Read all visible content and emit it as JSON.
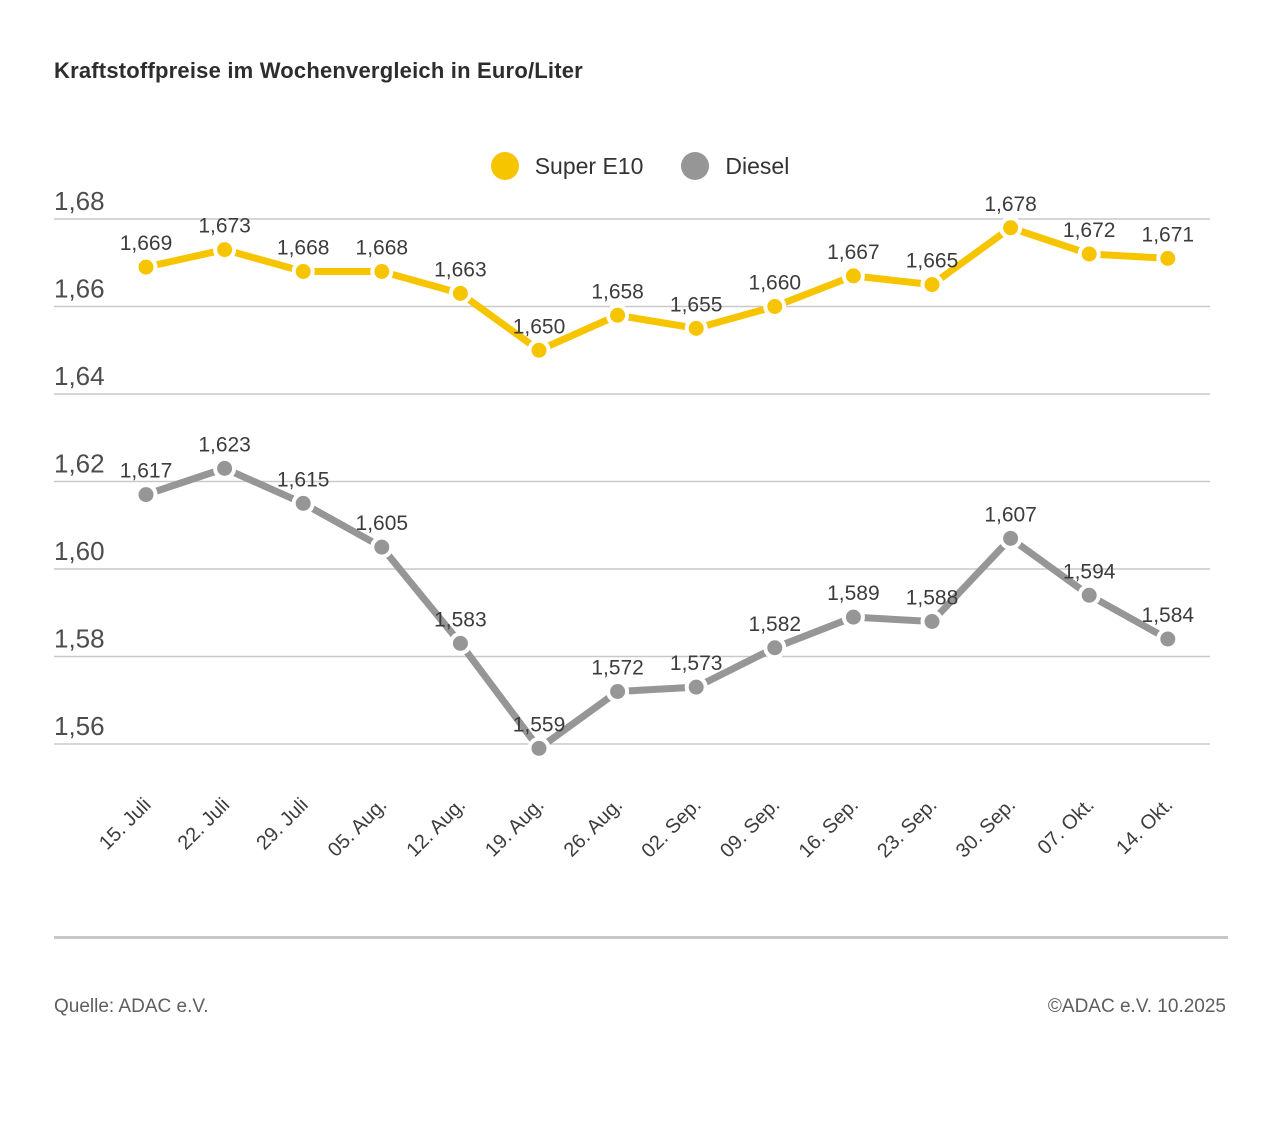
{
  "title": "Kraftstoffpreise im Wochenvergleich in Euro/Liter",
  "footer": {
    "source": "Quelle: ADAC e.V.",
    "copyright": "©ADAC e.V. 10.2025"
  },
  "colors": {
    "super_e10": "#f6c500",
    "diesel": "#969696",
    "grid": "#c9c9c9",
    "data_label": "#3c3c3c",
    "axis_label": "#4d4d4d",
    "tick_label": "#3c3c3c",
    "background": "#ffffff"
  },
  "chart_data": {
    "type": "line",
    "title": "Kraftstoffpreise im Wochenvergleich in Euro/Liter",
    "xlabel": "",
    "ylabel": "Euro/Liter",
    "grid": true,
    "legend_position": "top-center",
    "ylim": [
      1.545,
      1.685
    ],
    "categories": [
      "15. Juli",
      "22. Juli",
      "29. Juli",
      "05. Aug.",
      "12. Aug.",
      "19. Aug.",
      "26. Aug.",
      "02. Sep.",
      "09. Sep.",
      "16. Sep.",
      "23. Sep.",
      "30. Sep.",
      "07. Okt.",
      "14. Okt."
    ],
    "yticks": {
      "values": [
        1.68,
        1.66,
        1.64,
        1.62,
        1.6,
        1.58,
        1.56
      ],
      "labels": [
        "1,68",
        "1,66",
        "1,64",
        "1,62",
        "1,60",
        "1,58",
        "1,56"
      ]
    },
    "series": [
      {
        "name": "Super E10",
        "color": "#f6c500",
        "values": [
          1.669,
          1.673,
          1.668,
          1.668,
          1.663,
          1.65,
          1.658,
          1.655,
          1.66,
          1.667,
          1.665,
          1.678,
          1.672,
          1.671
        ],
        "labels": [
          "1,669",
          "1,673",
          "1,668",
          "1,668",
          "1,663",
          "1,650",
          "1,658",
          "1,655",
          "1,660",
          "1,667",
          "1,665",
          "1,678",
          "1,672",
          "1,671"
        ]
      },
      {
        "name": "Diesel",
        "color": "#969696",
        "values": [
          1.617,
          1.623,
          1.615,
          1.605,
          1.583,
          1.559,
          1.572,
          1.573,
          1.582,
          1.589,
          1.588,
          1.607,
          1.594,
          1.584
        ],
        "labels": [
          "1,617",
          "1,623",
          "1,615",
          "1,605",
          "1,583",
          "1,559",
          "1,572",
          "1,573",
          "1,582",
          "1,589",
          "1,588",
          "1,607",
          "1,594",
          "1,584"
        ]
      }
    ]
  }
}
